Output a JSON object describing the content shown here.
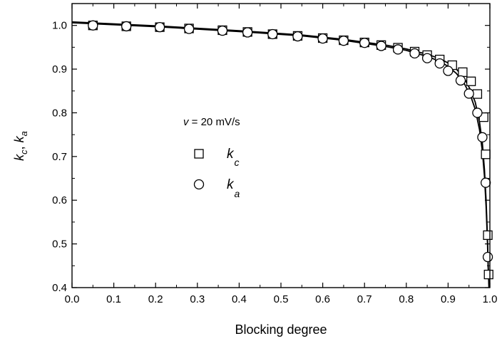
{
  "chart_data": {
    "type": "scatter",
    "xlabel": "Blocking degree",
    "ylabel": "k_c, k_a",
    "xlim": [
      0.0,
      1.0
    ],
    "ylim": [
      0.4,
      1.05
    ],
    "xticks": [
      "0.0",
      "0.1",
      "0.2",
      "0.3",
      "0.4",
      "0.5",
      "0.6",
      "0.7",
      "0.8",
      "0.9",
      "1.0"
    ],
    "yticks": [
      "0.4",
      "0.5",
      "0.6",
      "0.7",
      "0.8",
      "0.9",
      "1.0"
    ],
    "grid": false,
    "legend": {
      "title": "v = 20 mV/s",
      "title_italic": "v",
      "title_rest": " = 20 mV/s",
      "placement": "center-left",
      "entries": [
        {
          "name": "k_c",
          "symbol": "k",
          "subscript": "c",
          "marker": "square"
        },
        {
          "name": "k_a",
          "symbol": "k",
          "subscript": "a",
          "marker": "circle"
        }
      ]
    },
    "series": [
      {
        "name": "k_c",
        "marker": "square",
        "x": [
          0.05,
          0.13,
          0.21,
          0.28,
          0.36,
          0.42,
          0.48,
          0.54,
          0.6,
          0.65,
          0.7,
          0.74,
          0.78,
          0.82,
          0.85,
          0.88,
          0.91,
          0.935,
          0.955,
          0.97,
          0.985,
          0.99,
          0.995,
          0.997
        ],
        "y": [
          1.0,
          0.998,
          0.996,
          0.993,
          0.989,
          0.985,
          0.98,
          0.976,
          0.971,
          0.966,
          0.961,
          0.955,
          0.949,
          0.94,
          0.932,
          0.922,
          0.909,
          0.893,
          0.872,
          0.843,
          0.79,
          0.705,
          0.52,
          0.43
        ]
      },
      {
        "name": "k_a",
        "marker": "circle",
        "x": [
          0.05,
          0.13,
          0.21,
          0.28,
          0.36,
          0.42,
          0.48,
          0.54,
          0.6,
          0.65,
          0.7,
          0.74,
          0.78,
          0.82,
          0.85,
          0.88,
          0.9,
          0.93,
          0.95,
          0.97,
          0.982,
          0.99,
          0.995
        ],
        "y": [
          1.0,
          0.998,
          0.996,
          0.992,
          0.988,
          0.984,
          0.98,
          0.975,
          0.97,
          0.965,
          0.96,
          0.953,
          0.945,
          0.936,
          0.925,
          0.913,
          0.896,
          0.874,
          0.844,
          0.8,
          0.744,
          0.64,
          0.47
        ]
      }
    ],
    "fit_curves": [
      {
        "style": "solid",
        "x": [
          0.0,
          0.2,
          0.4,
          0.55,
          0.65,
          0.75,
          0.8,
          0.85,
          0.88,
          0.9,
          0.92,
          0.94,
          0.955,
          0.965,
          0.975,
          0.982,
          0.987,
          0.991,
          0.994,
          0.996,
          0.998
        ],
        "y": [
          1.008,
          0.999,
          0.988,
          0.978,
          0.968,
          0.955,
          0.946,
          0.934,
          0.924,
          0.914,
          0.9,
          0.877,
          0.85,
          0.824,
          0.78,
          0.73,
          0.67,
          0.6,
          0.52,
          0.45,
          0.4
        ]
      },
      {
        "style": "solid",
        "x": [
          0.0,
          0.2,
          0.4,
          0.55,
          0.65,
          0.75,
          0.8,
          0.85,
          0.88,
          0.9,
          0.92,
          0.94,
          0.955,
          0.965,
          0.975,
          0.982,
          0.987,
          0.991,
          0.994,
          0.996,
          0.998
        ],
        "y": [
          1.006,
          0.997,
          0.986,
          0.976,
          0.966,
          0.952,
          0.943,
          0.929,
          0.918,
          0.906,
          0.89,
          0.865,
          0.836,
          0.808,
          0.762,
          0.712,
          0.655,
          0.585,
          0.51,
          0.44,
          0.4
        ]
      }
    ]
  }
}
